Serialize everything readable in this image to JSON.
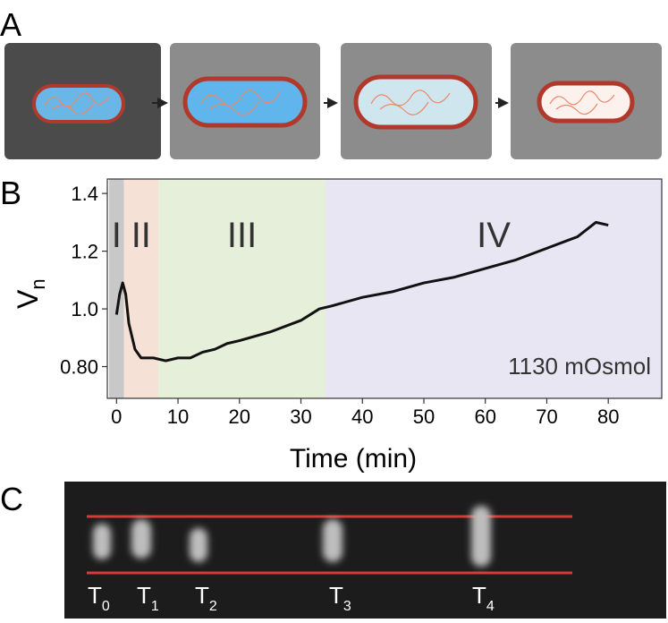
{
  "panels": {
    "a": "A",
    "b": "B",
    "c": "C"
  },
  "chart_data": {
    "type": "line",
    "x_label": "Time (min)",
    "y_label": "V",
    "y_label_sub": "n",
    "annotation": "1130 mOsmol",
    "xlim": [
      -1.5,
      88.7
    ],
    "ylim": [
      0.69,
      1.45
    ],
    "xticks": [
      0,
      10,
      20,
      30,
      40,
      50,
      60,
      70,
      80
    ],
    "yticks": [
      {
        "value": 0.8,
        "label": "0.80"
      },
      {
        "value": 1,
        "label": "1.0"
      },
      {
        "value": 1.2,
        "label": "1.2"
      },
      {
        "value": 1.4,
        "label": "1.4"
      }
    ],
    "phases": [
      {
        "label": "I",
        "start": -1.2,
        "end": 1.2,
        "color": "#c8c8c8"
      },
      {
        "label": "II",
        "start": 1.2,
        "end": 6.8,
        "color": "#f6e1d6"
      },
      {
        "label": "III",
        "start": 6.8,
        "end": 34,
        "color": "#e6efd9"
      },
      {
        "label": "IV",
        "start": 34,
        "end": 88.7,
        "color": "#e9e6f4"
      }
    ],
    "color": "#111111",
    "x": [
      0,
      0.5,
      1,
      1.5,
      2,
      3,
      4,
      6,
      8,
      10,
      12,
      14,
      16,
      18,
      20,
      25,
      30,
      33,
      35,
      40,
      45,
      50,
      55,
      60,
      65,
      70,
      75,
      78,
      80
    ],
    "values": [
      0.98,
      1.05,
      1.09,
      1.05,
      0.95,
      0.86,
      0.83,
      0.83,
      0.82,
      0.83,
      0.83,
      0.85,
      0.86,
      0.88,
      0.89,
      0.92,
      0.96,
      1.0,
      1.01,
      1.04,
      1.06,
      1.09,
      1.11,
      1.14,
      1.17,
      1.21,
      1.25,
      1.3,
      1.29
    ]
  },
  "panel_c": {
    "labels": [
      {
        "main": "T",
        "sub": "0"
      },
      {
        "main": "T",
        "sub": "1"
      },
      {
        "main": "T",
        "sub": "2"
      },
      {
        "main": "T",
        "sub": "3"
      },
      {
        "main": "T",
        "sub": "4"
      }
    ]
  }
}
